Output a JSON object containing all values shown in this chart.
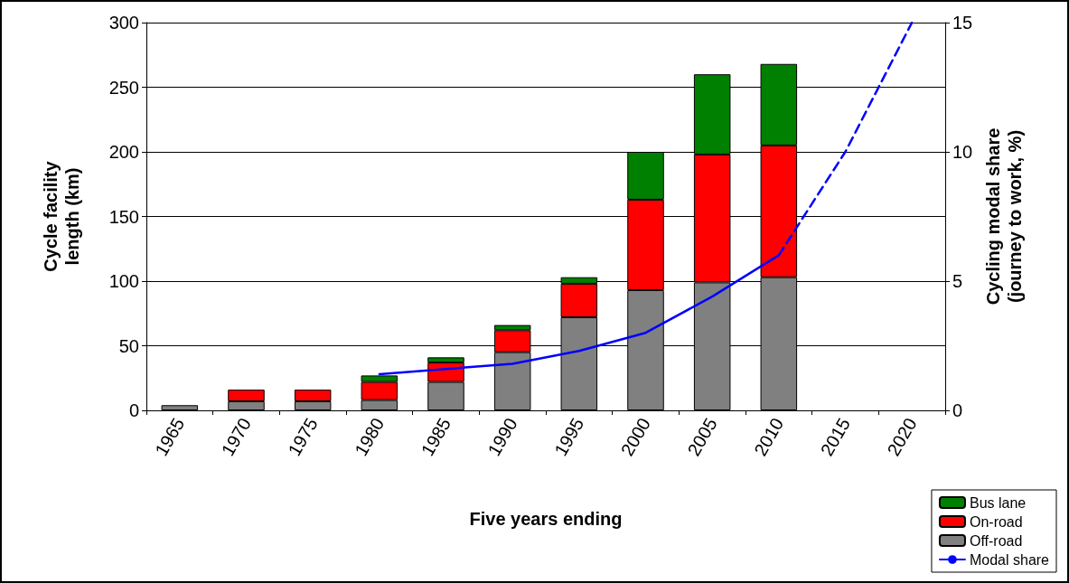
{
  "chart_data": {
    "type": "bar",
    "stacked": true,
    "xlabel": "Five years ending",
    "ylabel": "Cycle facility\nlength (km)",
    "y2label": "Cycling modal share\n(journey to work, %)",
    "categories": [
      "1965",
      "1970",
      "1975",
      "1980",
      "1985",
      "1990",
      "1995",
      "2000",
      "2005",
      "2010",
      "2015",
      "2020"
    ],
    "series": [
      {
        "name": "Off-road",
        "color": "#808080",
        "values": [
          4,
          7,
          7,
          8,
          22,
          45,
          72,
          93,
          99,
          103,
          null,
          null
        ]
      },
      {
        "name": "On-road",
        "color": "#ff0000",
        "values": [
          null,
          9,
          9,
          14,
          15,
          17,
          26,
          70,
          99,
          102,
          null,
          null
        ]
      },
      {
        "name": "Bus lane",
        "color": "#008000",
        "values": [
          null,
          null,
          null,
          5,
          4,
          4,
          5,
          37,
          62,
          63,
          null,
          null
        ]
      },
      {
        "name": "Modal share",
        "type": "line",
        "axis": "y2",
        "color": "#0000ff",
        "line_style": "solid",
        "values": [
          null,
          null,
          null,
          1.4,
          1.6,
          1.8,
          2.3,
          3.0,
          4.4,
          6.0,
          null,
          null
        ]
      },
      {
        "type": "line",
        "axis": "y2",
        "color": "#0000ff",
        "line_style": "dashed",
        "values": [
          null,
          null,
          null,
          null,
          null,
          null,
          null,
          null,
          null,
          6.0,
          10,
          15
        ]
      }
    ],
    "ylim": [
      0,
      300
    ],
    "yticks": [
      0,
      50,
      100,
      150,
      200,
      250,
      300
    ],
    "y2lim": [
      0,
      15
    ],
    "y2ticks": [
      0,
      5,
      10,
      15
    ],
    "grid": "y",
    "legend": "bottom right",
    "marker": "none"
  }
}
